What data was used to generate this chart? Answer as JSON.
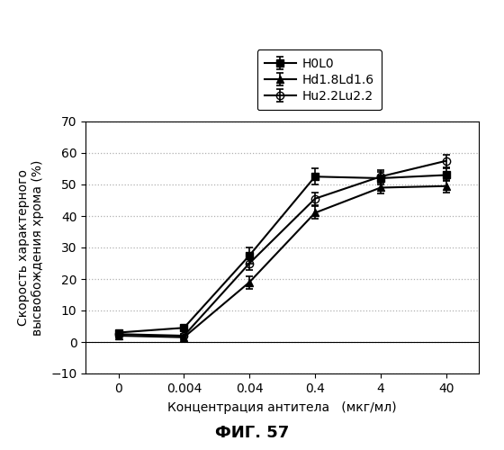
{
  "title": "ФИГ. 57",
  "xlabel": "Концентрация антитела   (мкг/мл)",
  "ylabel": "Скорость характерного\nвысвобождения хрома (%)",
  "ylim": [
    -10,
    70
  ],
  "yticks": [
    -10,
    0,
    10,
    20,
    30,
    40,
    50,
    60,
    70
  ],
  "x_labels": [
    "0",
    "0.004",
    "0.04",
    "0.4",
    "4",
    "40"
  ],
  "x_positions": [
    0,
    1,
    2,
    3,
    4,
    5
  ],
  "series": [
    {
      "label": "H0L0",
      "marker": "s",
      "color": "#000000",
      "fillstyle": "full",
      "y": [
        3.0,
        4.5,
        27.5,
        52.5,
        52.0,
        53.0
      ],
      "yerr": [
        0.5,
        0.5,
        2.5,
        2.5,
        2.0,
        2.0
      ]
    },
    {
      "label": "Hd1.8Ld1.6",
      "marker": "^",
      "color": "#000000",
      "fillstyle": "full",
      "y": [
        2.0,
        1.5,
        19.0,
        41.0,
        49.0,
        49.5
      ],
      "yerr": [
        0.5,
        0.5,
        2.0,
        2.0,
        2.0,
        2.0
      ]
    },
    {
      "label": "Hu2.2Lu2.2",
      "marker": "o",
      "color": "#000000",
      "fillstyle": "none",
      "y": [
        2.5,
        2.0,
        25.0,
        45.5,
        52.5,
        57.5
      ],
      "yerr": [
        0.5,
        0.5,
        2.0,
        2.0,
        2.0,
        2.0
      ]
    }
  ],
  "background_color": "#ffffff",
  "grid_color": "#b0b0b0",
  "fig_width": 5.6,
  "fig_height": 5.0,
  "dpi": 100
}
